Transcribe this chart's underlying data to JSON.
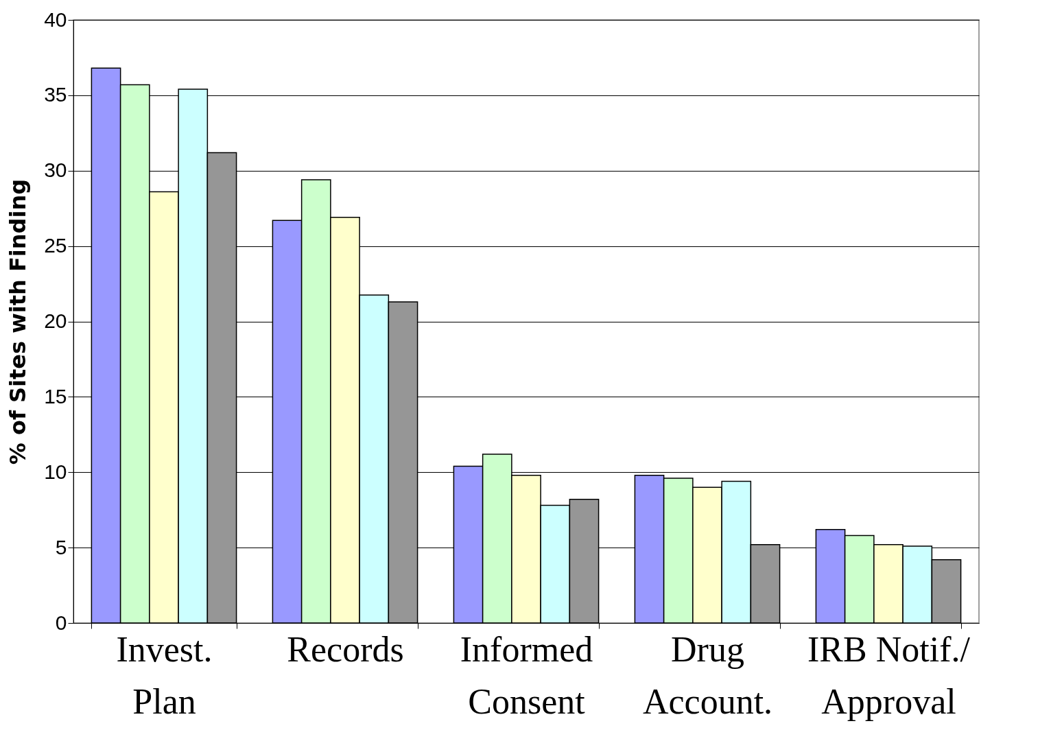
{
  "chart_data": {
    "type": "bar",
    "ylabel": "% of Sites with Finding",
    "categories": [
      "Invest.\nPlan",
      "Records",
      "Informed\nConsent",
      "Drug\nAccount.",
      "IRB Notif./\nApproval"
    ],
    "series": [
      {
        "color": "#9999ff",
        "values": [
          36.8,
          26.7,
          10.4,
          9.8,
          6.2
        ]
      },
      {
        "color": "#ccffcc",
        "values": [
          35.7,
          29.4,
          11.2,
          9.6,
          5.8
        ]
      },
      {
        "color": "#ffffcc",
        "values": [
          28.6,
          26.9,
          9.8,
          9.0,
          5.2
        ]
      },
      {
        "color": "#ccffff",
        "values": [
          35.4,
          21.75,
          7.8,
          9.4,
          5.1
        ]
      },
      {
        "color": "#969696",
        "values": [
          31.2,
          21.3,
          8.2,
          5.2,
          4.2
        ]
      }
    ],
    "ylim": [
      0,
      40
    ],
    "yticks": [
      0,
      5,
      10,
      15,
      20,
      25,
      30,
      35,
      40
    ],
    "grid": "y",
    "legend": false
  }
}
